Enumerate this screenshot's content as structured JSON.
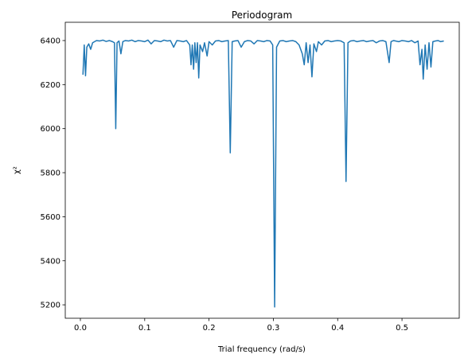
{
  "chart_data": {
    "type": "line",
    "title": "Periodogram",
    "xlabel": "Trial frequency (rad/s)",
    "ylabel": "χ²",
    "color": "#1f77b4",
    "xlim": [
      -0.0235,
      0.589
    ],
    "ylim": [
      5139,
      6483
    ],
    "xticks": [
      {
        "value": 0,
        "label": "0.0"
      },
      0.1,
      0.2,
      0.3,
      0.4,
      0.5
    ],
    "yticks": [
      5200,
      5400,
      5600,
      5800,
      6000,
      6200,
      6400
    ],
    "x": [
      0.004,
      0.006,
      0.008,
      0.01,
      0.013,
      0.016,
      0.019,
      0.022,
      0.025,
      0.03,
      0.035,
      0.04,
      0.045,
      0.05,
      0.053,
      0.055,
      0.057,
      0.06,
      0.063,
      0.066,
      0.07,
      0.075,
      0.08,
      0.085,
      0.09,
      0.095,
      0.1,
      0.105,
      0.11,
      0.115,
      0.12,
      0.125,
      0.13,
      0.135,
      0.14,
      0.145,
      0.15,
      0.155,
      0.16,
      0.165,
      0.17,
      0.172,
      0.174,
      0.176,
      0.178,
      0.18,
      0.182,
      0.184,
      0.186,
      0.19,
      0.193,
      0.197,
      0.2,
      0.205,
      0.21,
      0.215,
      0.22,
      0.225,
      0.23,
      0.233,
      0.236,
      0.24,
      0.245,
      0.25,
      0.255,
      0.26,
      0.265,
      0.27,
      0.275,
      0.28,
      0.285,
      0.29,
      0.295,
      0.299,
      0.302,
      0.305,
      0.31,
      0.315,
      0.32,
      0.325,
      0.33,
      0.335,
      0.34,
      0.345,
      0.348,
      0.351,
      0.354,
      0.357,
      0.36,
      0.363,
      0.367,
      0.37,
      0.375,
      0.38,
      0.385,
      0.39,
      0.395,
      0.4,
      0.405,
      0.41,
      0.413,
      0.416,
      0.42,
      0.425,
      0.43,
      0.435,
      0.44,
      0.445,
      0.45,
      0.455,
      0.46,
      0.465,
      0.47,
      0.475,
      0.48,
      0.483,
      0.487,
      0.49,
      0.495,
      0.5,
      0.505,
      0.51,
      0.515,
      0.52,
      0.525,
      0.528,
      0.531,
      0.533,
      0.536,
      0.539,
      0.542,
      0.545,
      0.548,
      0.552,
      0.556,
      0.56,
      0.565
    ],
    "values": [
      6245,
      6380,
      6240,
      6370,
      6385,
      6360,
      6390,
      6395,
      6400,
      6398,
      6402,
      6396,
      6400,
      6395,
      6390,
      6000,
      6390,
      6398,
      6340,
      6395,
      6400,
      6398,
      6402,
      6395,
      6400,
      6398,
      6395,
      6402,
      6385,
      6400,
      6398,
      6395,
      6402,
      6398,
      6400,
      6370,
      6400,
      6398,
      6395,
      6400,
      6380,
      6290,
      6380,
      6270,
      6390,
      6300,
      6390,
      6230,
      6380,
      6350,
      6390,
      6330,
      6395,
      6380,
      6398,
      6400,
      6395,
      6398,
      6400,
      5890,
      6395,
      6398,
      6400,
      6370,
      6395,
      6400,
      6398,
      6385,
      6400,
      6398,
      6395,
      6400,
      6398,
      6380,
      5190,
      6370,
      6398,
      6400,
      6395,
      6398,
      6400,
      6395,
      6380,
      6340,
      6290,
      6390,
      6300,
      6380,
      6235,
      6385,
      6350,
      6395,
      6380,
      6398,
      6400,
      6395,
      6398,
      6400,
      6398,
      6390,
      5760,
      6390,
      6398,
      6400,
      6395,
      6398,
      6400,
      6395,
      6398,
      6400,
      6390,
      6398,
      6400,
      6395,
      6300,
      6395,
      6400,
      6398,
      6395,
      6400,
      6398,
      6395,
      6400,
      6390,
      6398,
      6290,
      6360,
      6225,
      6380,
      6270,
      6390,
      6280,
      6395,
      6398,
      6400,
      6395,
      6398
    ]
  }
}
